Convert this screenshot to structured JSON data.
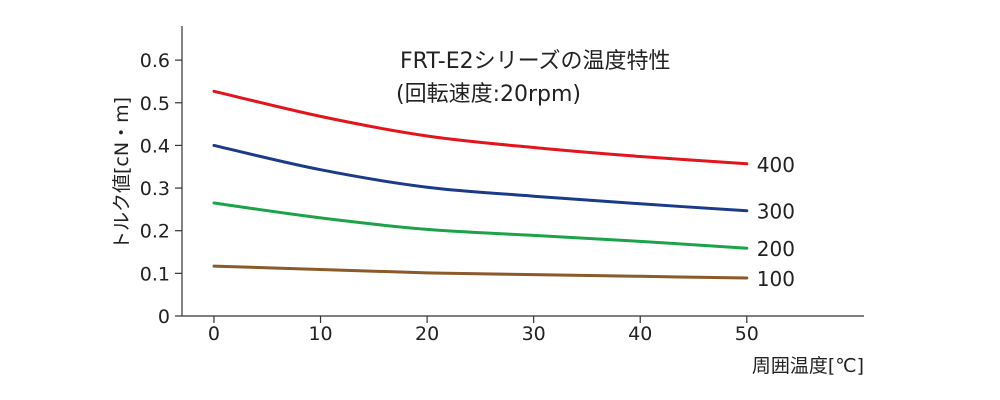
{
  "chart_data": {
    "type": "line",
    "title": "FRT-E2シリーズの温度特性",
    "subtitle": "(回転速度:20rpm)",
    "xlabel": "周囲温度[℃]",
    "ylabel": "トルク値[cN・m]",
    "xlim": [
      -3,
      61
    ],
    "ylim": [
      0,
      0.68
    ],
    "x_ticks": [
      "0",
      "10",
      "20",
      "30",
      "40",
      "50"
    ],
    "y_ticks": [
      "0",
      "0.1",
      "0.2",
      "0.3",
      "0.4",
      "0.5",
      "0.6"
    ],
    "grid": false,
    "series": [
      {
        "name": "400",
        "color": "#e2141c",
        "x": [
          0,
          10,
          20,
          30,
          40,
          50
        ],
        "y": [
          0.527,
          0.468,
          0.422,
          0.395,
          0.374,
          0.357
        ]
      },
      {
        "name": "300",
        "color": "#1a3a8a",
        "x": [
          0,
          10,
          20,
          30,
          40,
          50
        ],
        "y": [
          0.4,
          0.343,
          0.302,
          0.281,
          0.263,
          0.247
        ]
      },
      {
        "name": "200",
        "color": "#1ca34a",
        "x": [
          0,
          10,
          20,
          30,
          40,
          50
        ],
        "y": [
          0.265,
          0.23,
          0.203,
          0.189,
          0.175,
          0.159
        ]
      },
      {
        "name": "100",
        "color": "#8b5a2b",
        "x": [
          0,
          10,
          20,
          30,
          40,
          50
        ],
        "y": [
          0.117,
          0.109,
          0.101,
          0.097,
          0.093,
          0.089
        ]
      }
    ]
  }
}
